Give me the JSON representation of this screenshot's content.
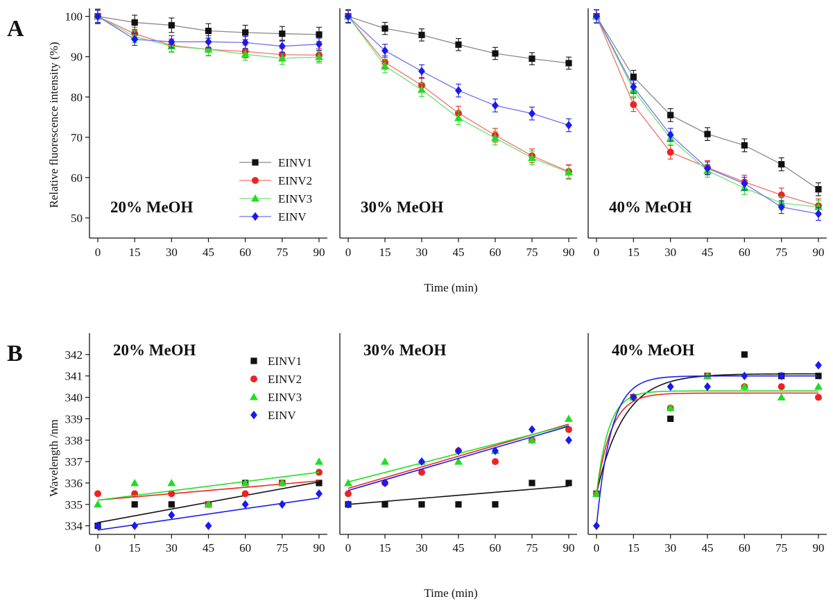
{
  "colors": {
    "EINV1": "#111111",
    "EINV2": "#ee2222",
    "EINV3": "#22dd22",
    "EINV": "#1a1aee"
  },
  "figure": {
    "panel_a_label": "A",
    "panel_b_label": "B",
    "x_label": "Time (min)"
  },
  "chart_data": [
    {
      "id": "A",
      "type": "line",
      "ylabel": "Relative fluorescence intensity (%)",
      "xlabel": "Time (min)",
      "x_ticks": [
        0,
        15,
        30,
        45,
        60,
        75,
        90
      ],
      "xlim": [
        0,
        90
      ],
      "ylim": [
        45,
        102
      ],
      "y_ticks": [
        50,
        60,
        70,
        80,
        90,
        100
      ],
      "legend": [
        "EINV1",
        "EINV2",
        "EINV3",
        "EINV"
      ],
      "legend_placement": "bottom-right of first panel",
      "panels": [
        {
          "title": "20% MeOH",
          "x": [
            0,
            15,
            30,
            45,
            60,
            75,
            90
          ],
          "series": [
            {
              "name": "EINV1",
              "marker": "square",
              "values": [
                100,
                98.5,
                97.8,
                96.4,
                96,
                95.7,
                95.5
              ],
              "errors": [
                1.8,
                1.8,
                1.8,
                1.8,
                1.8,
                1.8,
                1.8
              ]
            },
            {
              "name": "EINV2",
              "marker": "circle",
              "values": [
                100,
                95.7,
                92.8,
                91.8,
                91.3,
                90.5,
                90.4
              ],
              "errors": [
                1.6,
                1.6,
                1.6,
                1.6,
                1.6,
                1.6,
                1.6
              ]
            },
            {
              "name": "EINV3",
              "marker": "triangle",
              "values": [
                100,
                95,
                92.6,
                91.8,
                90.6,
                89.6,
                89.9
              ],
              "errors": [
                1.5,
                1.5,
                1.5,
                1.5,
                1.5,
                1.5,
                1.5
              ]
            },
            {
              "name": "EINV",
              "marker": "diamond",
              "values": [
                100,
                94.3,
                93.7,
                93.7,
                93.5,
                92.6,
                93.1
              ],
              "errors": [
                1.5,
                1.5,
                1.5,
                1.5,
                1.5,
                1.5,
                1.5
              ]
            }
          ]
        },
        {
          "title": "30% MeOH",
          "x": [
            0,
            15,
            30,
            45,
            60,
            75,
            90
          ],
          "series": [
            {
              "name": "EINV1",
              "marker": "square",
              "values": [
                100,
                97,
                95.4,
                93,
                90.8,
                89.5,
                88.4
              ],
              "errors": [
                1.5,
                1.5,
                1.5,
                1.5,
                1.5,
                1.5,
                1.5
              ]
            },
            {
              "name": "EINV2",
              "marker": "circle",
              "values": [
                100,
                88.6,
                82.9,
                76,
                70.5,
                65.4,
                61.5
              ],
              "errors": [
                1.7,
                1.7,
                1.7,
                1.7,
                1.7,
                1.7,
                1.7
              ]
            },
            {
              "name": "EINV3",
              "marker": "triangle",
              "values": [
                100,
                87.7,
                81.8,
                74.8,
                69.8,
                64.9,
                61.3
              ],
              "errors": [
                1.7,
                1.7,
                1.7,
                1.7,
                1.7,
                1.7,
                1.7
              ]
            },
            {
              "name": "EINV",
              "marker": "diamond",
              "values": [
                100,
                91.5,
                86.4,
                81.6,
                77.9,
                75.9,
                73
              ],
              "errors": [
                1.6,
                1.6,
                1.6,
                1.6,
                1.6,
                1.6,
                1.6
              ]
            }
          ]
        },
        {
          "title": "40% MeOH",
          "x": [
            0,
            15,
            30,
            45,
            60,
            75,
            90
          ],
          "series": [
            {
              "name": "EINV1",
              "marker": "square",
              "values": [
                100,
                85,
                75.5,
                70.8,
                68,
                63.3,
                57.1
              ],
              "errors": [
                1.6,
                1.6,
                1.6,
                1.6,
                1.6,
                1.6,
                1.6
              ]
            },
            {
              "name": "EINV2",
              "marker": "circle",
              "values": [
                100,
                78.1,
                66.3,
                62.5,
                58.9,
                55.7,
                53
              ],
              "errors": [
                1.7,
                1.7,
                1.7,
                1.7,
                1.7,
                1.7,
                1.7
              ]
            },
            {
              "name": "EINV3",
              "marker": "triangle",
              "values": [
                100,
                81.7,
                69.7,
                61.7,
                57.4,
                53.7,
                52.7
              ],
              "errors": [
                1.6,
                1.6,
                1.6,
                1.6,
                1.6,
                1.6,
                1.6
              ]
            },
            {
              "name": "EINV",
              "marker": "diamond",
              "values": [
                100,
                82.5,
                70.6,
                62.3,
                58.5,
                52.7,
                51
              ],
              "errors": [
                1.6,
                1.6,
                1.6,
                1.6,
                1.6,
                1.6,
                1.6
              ]
            }
          ]
        }
      ]
    },
    {
      "id": "B",
      "type": "scatter",
      "ylabel": "Wavelength /nm",
      "xlabel": "Time (min)",
      "x_ticks": [
        0,
        15,
        30,
        45,
        60,
        75,
        90
      ],
      "xlim": [
        0,
        90
      ],
      "ylim": [
        333.6,
        343
      ],
      "y_ticks": [
        334,
        335,
        336,
        337,
        338,
        339,
        340,
        341,
        342
      ],
      "legend": [
        "EINV1",
        "EINV2",
        "EINV3",
        "EINV"
      ],
      "legend_placement": "top-right of first panel",
      "panels": [
        {
          "title": "20% MeOH",
          "fit": "linear",
          "x": [
            0,
            15,
            30,
            45,
            60,
            75,
            90
          ],
          "series": [
            {
              "name": "EINV1",
              "marker": "square",
              "values": [
                334,
                335,
                335,
                335,
                336,
                336,
                336
              ],
              "fit_line": [
                334.15,
                336.05
              ]
            },
            {
              "name": "EINV2",
              "marker": "circle",
              "values": [
                335.5,
                335.5,
                335.5,
                335,
                335.5,
                336,
                336.5
              ],
              "fit_line": [
                335.2,
                336.1
              ]
            },
            {
              "name": "EINV3",
              "marker": "triangle",
              "values": [
                335,
                336,
                336,
                335,
                336,
                336,
                337
              ],
              "fit_line": [
                335.2,
                336.5
              ]
            },
            {
              "name": "EINV",
              "marker": "diamond",
              "values": [
                334,
                334,
                334.5,
                334,
                335,
                335,
                335.5
              ],
              "fit_line": [
                333.8,
                335.3
              ]
            }
          ]
        },
        {
          "title": "30% MeOH",
          "fit": "linear",
          "x": [
            0,
            15,
            30,
            45,
            60,
            75,
            90
          ],
          "series": [
            {
              "name": "EINV1",
              "marker": "square",
              "values": [
                335,
                335,
                335,
                335,
                335,
                336,
                336
              ],
              "fit_line": [
                335,
                335.85
              ]
            },
            {
              "name": "EINV2",
              "marker": "circle",
              "values": [
                335.5,
                336,
                336.5,
                337.5,
                337,
                338,
                338.5
              ],
              "fit_line": [
                335.75,
                338.75
              ]
            },
            {
              "name": "EINV3",
              "marker": "triangle",
              "values": [
                336,
                337,
                337,
                337,
                337.5,
                338,
                339
              ],
              "fit_line": [
                336.05,
                338.7
              ]
            },
            {
              "name": "EINV",
              "marker": "diamond",
              "values": [
                335,
                336,
                337,
                337.5,
                337.5,
                338.5,
                338
              ],
              "fit_line": [
                335.65,
                338.65
              ]
            }
          ]
        },
        {
          "title": "40% MeOH",
          "fit": "exponential",
          "x": [
            0,
            15,
            30,
            45,
            60,
            75,
            90
          ],
          "series": [
            {
              "name": "EINV1",
              "marker": "square",
              "values": [
                335.5,
                340,
                339,
                341,
                342,
                341,
                341
              ],
              "fit_plateau": 341.1,
              "fit_tau": 11
            },
            {
              "name": "EINV2",
              "marker": "circle",
              "values": [
                335.5,
                340,
                339.5,
                341,
                340.5,
                340.5,
                340
              ],
              "fit_plateau": 340.2,
              "fit_tau": 6
            },
            {
              "name": "EINV3",
              "marker": "triangle",
              "values": [
                335.5,
                340,
                339.5,
                341,
                340.5,
                340,
                340.5
              ],
              "fit_plateau": 340.3,
              "fit_tau": 5
            },
            {
              "name": "EINV",
              "marker": "diamond",
              "values": [
                334,
                340,
                340.5,
                340.5,
                341,
                341,
                341.5
              ],
              "fit_plateau": 341,
              "fit_tau": 6
            }
          ]
        }
      ]
    }
  ]
}
